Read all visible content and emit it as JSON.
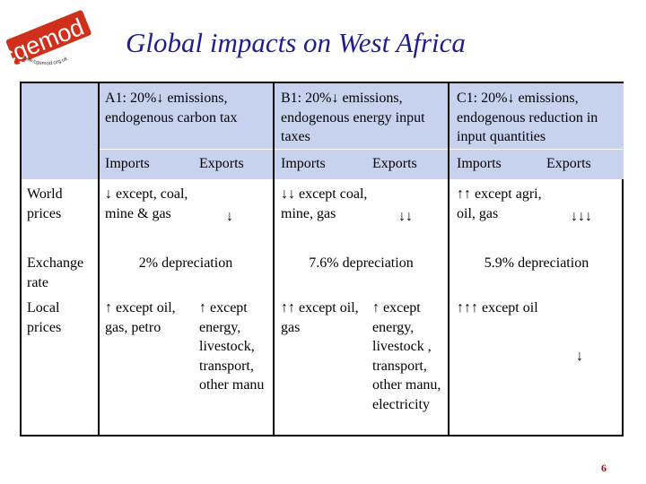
{
  "logo": {
    "text": "cgemod",
    "url": "www.cgemod.org.uk"
  },
  "title": "Global impacts on West Africa",
  "scenarios": [
    {
      "label": "A1: 20%↓ emissions, endogenous carbon tax"
    },
    {
      "label": "B1: 20%↓ emissions, endogenous energy input taxes"
    },
    {
      "label": "C1: 20%↓ emissions, endogenous reduction in input quantities"
    }
  ],
  "columns": {
    "imports": "Imports",
    "exports": "Exports"
  },
  "rows": {
    "world_prices": {
      "label": "World prices",
      "a1_imports": "↓ except, coal, mine & gas",
      "a1_exports": "↓",
      "b1_imports": "↓↓ except coal, mine, gas",
      "b1_exports": "↓↓",
      "c1_imports": "↑↑ except agri, oil, gas",
      "c1_exports": "↓↓↓"
    },
    "exchange_rate": {
      "label": "Exchange rate",
      "a1": "2% depreciation",
      "b1": "7.6% depreciation",
      "c1": "5.9% depreciation"
    },
    "local_prices": {
      "label": "Local prices",
      "a1_imports": "↑ except oil, gas, petro",
      "a1_exports": "↑ except energy, livestock, transport, other manu",
      "b1_imports": "↑↑ except oil, gas",
      "b1_exports": "↑ except energy, livestock , transport, other manu, electricity",
      "c1_imports": "↑↑↑ except oil",
      "c1_exports": "↓"
    }
  },
  "page_number": "6",
  "colors": {
    "title": "#1f1f8c",
    "header_band": "#c7d3ee",
    "logo": "#d0301b",
    "page_number": "#c00000"
  }
}
